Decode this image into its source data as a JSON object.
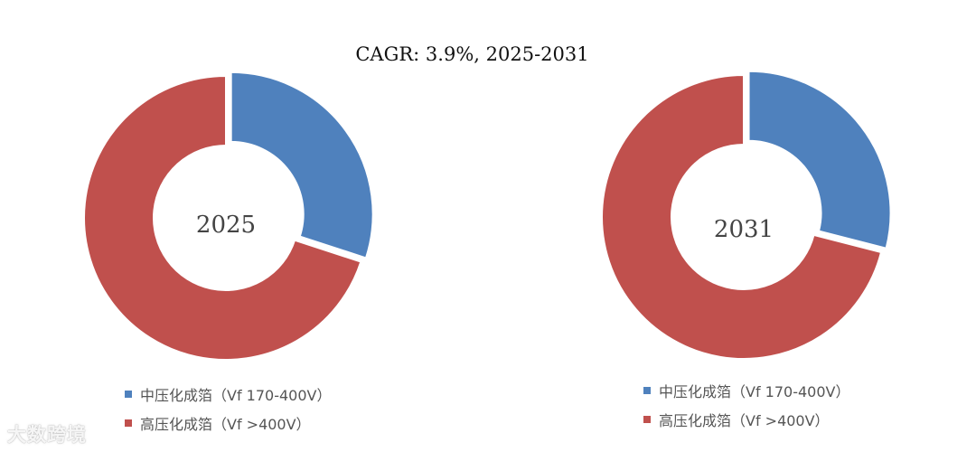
{
  "title": "CAGR:   3.9%, 2025-2031",
  "watermark": "大数跨境",
  "colors": {
    "medium": "#4f81bd",
    "high": "#c0504d"
  },
  "chart_data": [
    {
      "type": "pie",
      "center_label": "2025",
      "categories": [
        "中压化成箔（Vf 170-400V）",
        "高压化成箔（Vf >400V）"
      ],
      "values": [
        30,
        70
      ],
      "legend": "bottom"
    },
    {
      "type": "pie",
      "center_label": "2031",
      "categories": [
        "中压化成箔（Vf 170-400V）",
        "高压化成箔（Vf >400V）"
      ],
      "values": [
        29,
        71
      ],
      "legend": "bottom"
    }
  ]
}
